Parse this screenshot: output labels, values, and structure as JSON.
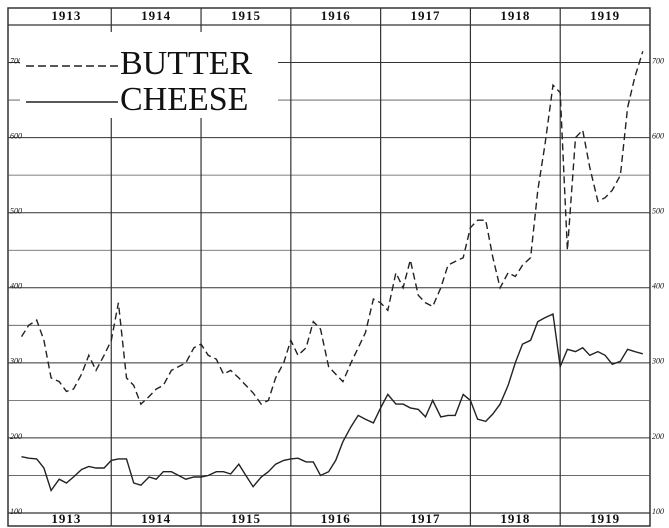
{
  "chart_data": {
    "type": "line",
    "series": [
      {
        "name": "BUTTER",
        "color": "#222",
        "dash": true,
        "values": [
          335,
          350,
          357,
          330,
          280,
          275,
          262,
          265,
          285,
          310,
          290,
          310,
          330,
          380,
          280,
          270,
          245,
          255,
          265,
          270,
          290,
          295,
          300,
          320,
          325,
          310,
          305,
          285,
          290,
          280,
          270,
          260,
          245,
          250,
          280,
          300,
          330,
          310,
          320,
          355,
          345,
          295,
          285,
          275,
          300,
          320,
          340,
          385,
          380,
          370,
          420,
          400,
          437,
          390,
          380,
          375,
          400,
          430,
          435,
          440,
          480,
          490,
          490,
          440,
          400,
          420,
          415,
          430,
          440,
          530,
          590,
          670,
          660,
          450,
          600,
          610,
          560,
          515,
          520,
          530,
          550,
          640,
          680,
          715
        ]
      },
      {
        "name": "CHEESE",
        "color": "#222",
        "dash": false,
        "values": [
          175,
          173,
          172,
          160,
          130,
          145,
          140,
          148,
          158,
          162,
          160,
          160,
          170,
          172,
          172,
          140,
          137,
          148,
          145,
          155,
          155,
          150,
          145,
          148,
          148,
          150,
          155,
          155,
          152,
          165,
          150,
          135,
          148,
          155,
          165,
          170,
          172,
          173,
          168,
          168,
          150,
          155,
          170,
          195,
          215,
          230,
          225,
          220,
          240,
          258,
          245,
          245,
          240,
          238,
          228,
          250,
          228,
          230,
          230,
          258,
          250,
          225,
          222,
          232,
          245,
          270,
          300,
          325,
          330,
          355,
          360,
          365,
          295,
          318,
          315,
          320,
          310,
          315,
          310,
          298,
          302,
          318,
          315,
          312
        ]
      }
    ],
    "x": [
      1913,
      1913.08,
      1913.17,
      1913.25,
      1913.33,
      1913.42,
      1913.5,
      1913.58,
      1913.67,
      1913.75,
      1913.83,
      1913.92,
      1914,
      1914.08,
      1914.17,
      1914.25,
      1914.33,
      1914.42,
      1914.5,
      1914.58,
      1914.67,
      1914.75,
      1914.83,
      1914.92,
      1915,
      1915.08,
      1915.17,
      1915.25,
      1915.33,
      1915.42,
      1915.5,
      1915.58,
      1915.67,
      1915.75,
      1915.83,
      1915.92,
      1916,
      1916.08,
      1916.17,
      1916.25,
      1916.33,
      1916.42,
      1916.5,
      1916.58,
      1916.67,
      1916.75,
      1916.83,
      1916.92,
      1917,
      1917.08,
      1917.17,
      1917.25,
      1917.33,
      1917.42,
      1917.5,
      1917.58,
      1917.67,
      1917.75,
      1917.83,
      1917.92,
      1918,
      1918.08,
      1918.17,
      1918.25,
      1918.33,
      1918.42,
      1918.5,
      1918.58,
      1918.67,
      1918.75,
      1918.83,
      1918.92,
      1919,
      1919.08,
      1919.17,
      1919.25,
      1919.33,
      1919.42,
      1919.5,
      1919.58,
      1919.67,
      1919.75,
      1919.83,
      1919.92
    ],
    "xlim": [
      1912.85,
      1920
    ],
    "xticks": [
      {
        "value": 1913.5,
        "label": "1913"
      },
      {
        "value": 1914.5,
        "label": "1914"
      },
      {
        "value": 1915.5,
        "label": "1915"
      },
      {
        "value": 1916.5,
        "label": "1916"
      },
      {
        "value": 1917.5,
        "label": "1917"
      },
      {
        "value": 1918.5,
        "label": "1918"
      },
      {
        "value": 1919.5,
        "label": "1919"
      }
    ],
    "xgrid": [
      1914,
      1915,
      1916,
      1917,
      1918,
      1919
    ],
    "ylim": [
      100,
      750
    ],
    "yticks": [
      100,
      200,
      300,
      400,
      500,
      600,
      700
    ],
    "yminorticks": [
      150,
      250,
      350,
      450,
      550,
      650
    ],
    "grid": true,
    "legend": "upper left"
  }
}
